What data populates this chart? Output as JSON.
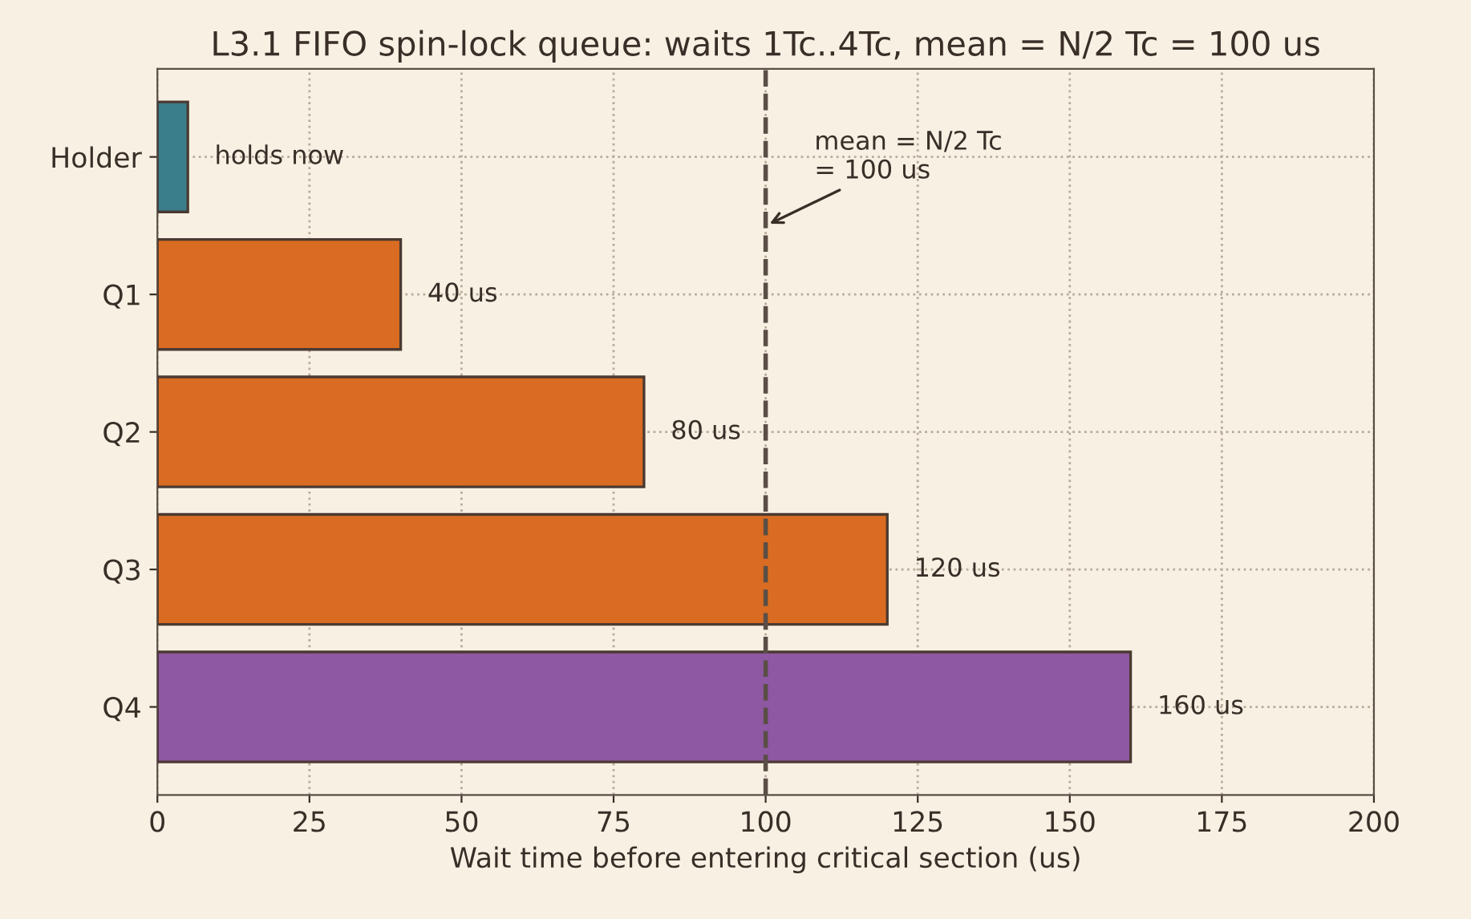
{
  "chart_data": {
    "type": "bar",
    "orientation": "horizontal",
    "title": "L3.1 FIFO spin-lock queue: waits 1Tc..4Tc, mean = N/2 Tc = 100 us",
    "xlabel": "Wait time before entering critical section (us)",
    "categories": [
      "Holder",
      "Q1",
      "Q2",
      "Q3",
      "Q4"
    ],
    "values": [
      5,
      40,
      80,
      120,
      160
    ],
    "colors": [
      "#3a7e8c",
      "#d96c22",
      "#d96c22",
      "#d96c22",
      "#8e58a2"
    ],
    "value_labels": [
      "holds now",
      "40 us",
      "80 us",
      "120 us",
      "160 us"
    ],
    "xlim": [
      0,
      200
    ],
    "xticks": [
      0,
      25,
      50,
      75,
      100,
      125,
      150,
      175,
      200
    ],
    "grid": true,
    "ref_lines": [
      {
        "axis": "x",
        "value": 100,
        "label": "mean = N/2 Tc\n= 100 us",
        "color": "#5a4e46",
        "line_style": "dashed"
      }
    ]
  }
}
